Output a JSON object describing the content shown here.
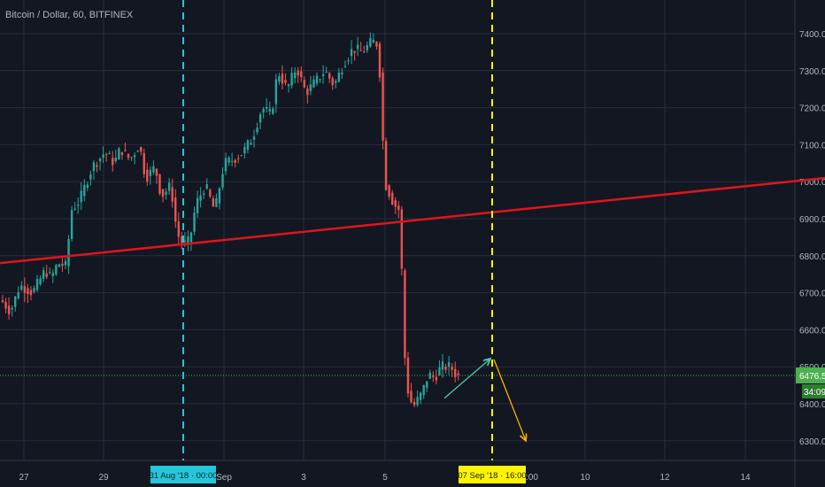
{
  "header": {
    "title": "Bitcoin / Dollar, 60, BITFINEX"
  },
  "colors": {
    "background": "#131722",
    "grid": "#2a2e39",
    "up": "#26a69a",
    "down": "#ef5350",
    "trendline": "#e0151b",
    "cyan_marker": "#26c6da",
    "yellow_marker": "#fff500",
    "arrow_green": "#4dd0a8",
    "arrow_orange": "#ffb300",
    "price_line": "#4caf50",
    "axis_text": "#b2b5be"
  },
  "chart_data": {
    "type": "candlestick",
    "title": "Bitcoin / Dollar, 60, BITFINEX",
    "ylim": [
      6250,
      7500
    ],
    "y_ticks": [
      "6300.0",
      "6400.0",
      "6500.0",
      "6600.0",
      "6700.0",
      "6800.0",
      "6900.0",
      "7000.0",
      "7100.0",
      "7200.0",
      "7300.0",
      "7400.0"
    ],
    "x_ticks": [
      "27",
      "29",
      "Sep",
      "3",
      "5",
      "10",
      "12",
      "14"
    ],
    "grid": true,
    "current_price": 6476.5,
    "current_price_label": "6476.5",
    "countdown_label": "34:09",
    "markers": [
      {
        "label": "31 Aug '18 · 00:00",
        "color": "cyan"
      },
      {
        "label": "07 Sep '18 · 16:00",
        "color": "yellow"
      }
    ],
    "partial_label_after_yellow": ":00",
    "trendline": {
      "start_price": 6780,
      "end_price": 7010
    },
    "price_path": [
      [
        0,
        6680
      ],
      [
        3,
        6650
      ],
      [
        6,
        6720
      ],
      [
        10,
        6700
      ],
      [
        14,
        6760
      ],
      [
        16,
        6740
      ],
      [
        18,
        6780
      ],
      [
        21,
        6770
      ],
      [
        22,
        6920
      ],
      [
        25,
        6950
      ],
      [
        29,
        7040
      ],
      [
        33,
        7080
      ],
      [
        36,
        7050
      ],
      [
        38,
        7090
      ],
      [
        41,
        7060
      ],
      [
        44,
        7100
      ],
      [
        46,
        7010
      ],
      [
        49,
        7040
      ],
      [
        51,
        6960
      ],
      [
        54,
        6990
      ],
      [
        56,
        6860
      ],
      [
        58,
        6830
      ],
      [
        60,
        6840
      ],
      [
        62,
        6940
      ],
      [
        65,
        6990
      ],
      [
        68,
        6920
      ],
      [
        71,
        7050
      ],
      [
        74,
        7060
      ],
      [
        77,
        7080
      ],
      [
        80,
        7120
      ],
      [
        83,
        7200
      ],
      [
        86,
        7180
      ],
      [
        88,
        7300
      ],
      [
        91,
        7250
      ],
      [
        94,
        7310
      ],
      [
        97,
        7240
      ],
      [
        100,
        7270
      ],
      [
        103,
        7300
      ],
      [
        106,
        7260
      ],
      [
        109,
        7320
      ],
      [
        112,
        7360
      ],
      [
        115,
        7350
      ],
      [
        118,
        7380
      ],
      [
        120,
        7370
      ],
      [
        121,
        7220
      ],
      [
        122,
        7000
      ],
      [
        125,
        6940
      ],
      [
        127,
        6920
      ],
      [
        128,
        6600
      ],
      [
        129,
        6450
      ],
      [
        131,
        6390
      ],
      [
        134,
        6430
      ],
      [
        136,
        6480
      ],
      [
        138,
        6470
      ],
      [
        140,
        6500
      ],
      [
        143,
        6500
      ],
      [
        145,
        6476
      ]
    ]
  }
}
